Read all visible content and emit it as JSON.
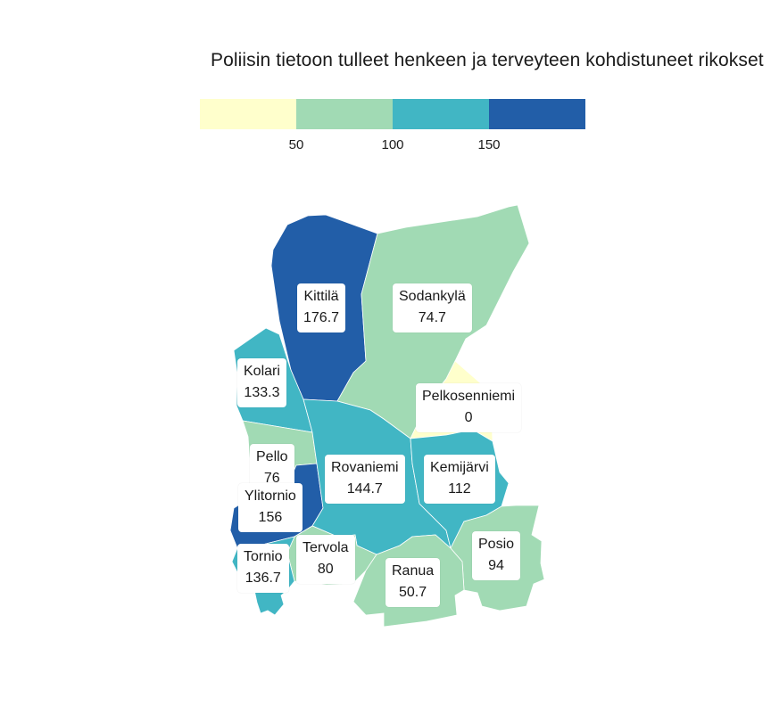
{
  "title": "Poliisin tietoon tulleet henkeen ja terveyteen kohdistuneet rikokset",
  "legend": {
    "colors": [
      "#ffffcc",
      "#a1dab4",
      "#41b6c4",
      "#225ea8"
    ],
    "ticks": [
      "50",
      "100",
      "150"
    ]
  },
  "chart_data": {
    "type": "choropleth",
    "title": "Poliisin tietoon tulleet henkeen ja terveyteen kohdistuneet rikokset",
    "bins": [
      0,
      50,
      100,
      150,
      200
    ],
    "regions": [
      {
        "name": "Kittilä",
        "value": 176.7,
        "color": "#225ea8"
      },
      {
        "name": "Sodankylä",
        "value": 74.7,
        "color": "#a1dab4"
      },
      {
        "name": "Kolari",
        "value": 133.3,
        "color": "#41b6c4"
      },
      {
        "name": "Pelkosenniemi",
        "value": 0,
        "color": "#ffffcc"
      },
      {
        "name": "Pello",
        "value": 76,
        "color": "#a1dab4"
      },
      {
        "name": "Rovaniemi",
        "value": 144.7,
        "color": "#41b6c4"
      },
      {
        "name": "Kemijärvi",
        "value": 112,
        "color": "#41b6c4"
      },
      {
        "name": "Ylitornio",
        "value": 156,
        "color": "#225ea8"
      },
      {
        "name": "Posio",
        "value": 94,
        "color": "#a1dab4"
      },
      {
        "name": "Tervola",
        "value": 80,
        "color": "#a1dab4"
      },
      {
        "name": "Tornio",
        "value": 136.7,
        "color": "#41b6c4"
      },
      {
        "name": "Ranua",
        "value": 50.7,
        "color": "#a1dab4"
      }
    ]
  },
  "labels": {
    "kittila": {
      "name": "Kittilä",
      "value": "176.7"
    },
    "sodankyla": {
      "name": "Sodankylä",
      "value": "74.7"
    },
    "kolari": {
      "name": "Kolari",
      "value": "133.3"
    },
    "pelkosenniemi": {
      "name": "Pelkosenniemi",
      "value": "0"
    },
    "pello": {
      "name": "Pello",
      "value": "76"
    },
    "rovaniemi": {
      "name": "Rovaniemi",
      "value": "144.7"
    },
    "kemijarvi": {
      "name": "Kemijärvi",
      "value": "112"
    },
    "ylitornio": {
      "name": "Ylitornio",
      "value": "156"
    },
    "posio": {
      "name": "Posio",
      "value": "94"
    },
    "tervola": {
      "name": "Tervola",
      "value": "80"
    },
    "tornio": {
      "name": "Tornio",
      "value": "136.7"
    },
    "ranua": {
      "name": "Ranua",
      "value": "50.7"
    }
  }
}
